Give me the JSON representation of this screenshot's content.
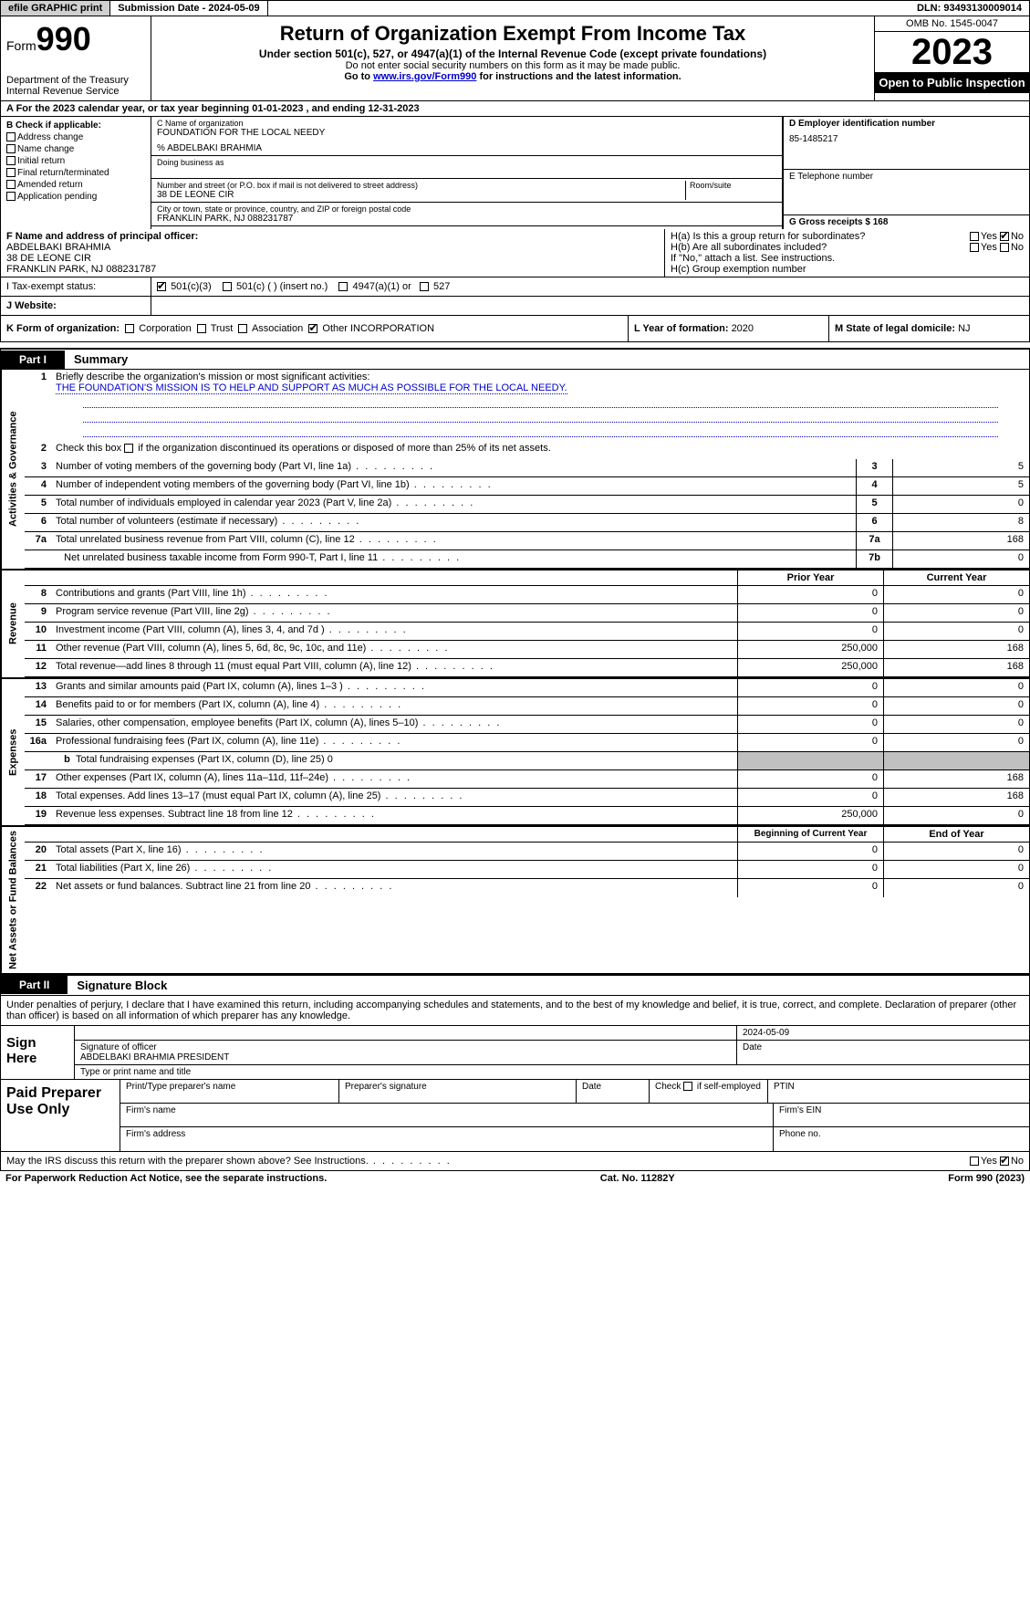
{
  "topbar": {
    "efile": "efile GRAPHIC print",
    "subdate_label": "Submission Date - ",
    "subdate": "2024-05-09",
    "dln_label": "DLN: ",
    "dln": "93493130009014"
  },
  "header": {
    "form_label": "Form",
    "form_num": "990",
    "dept": "Department of the Treasury\nInternal Revenue Service",
    "title": "Return of Organization Exempt From Income Tax",
    "sub1": "Under section 501(c), 527, or 4947(a)(1) of the Internal Revenue Code (except private foundations)",
    "sub2": "Do not enter social security numbers on this form as it may be made public.",
    "sub3_pre": "Go to ",
    "sub3_link": "www.irs.gov/Form990",
    "sub3_post": " for instructions and the latest information.",
    "omb": "OMB No. 1545-0047",
    "year": "2023",
    "open": "Open to Public Inspection"
  },
  "row_a": {
    "pre": "A For the 2023 calendar year, or tax year beginning ",
    "begin": "01-01-2023",
    "mid": "   , and ending ",
    "end": "12-31-2023"
  },
  "b": {
    "hdr": "B Check if applicable:",
    "addr": "Address change",
    "name": "Name change",
    "init": "Initial return",
    "final": "Final return/terminated",
    "amend": "Amended return",
    "app": "Application pending"
  },
  "c": {
    "name_lbl": "C Name of organization",
    "name": "FOUNDATION FOR THE LOCAL NEEDY",
    "co": "% ABDELBAKI BRAHMIA",
    "dba_lbl": "Doing business as",
    "street_lbl": "Number and street (or P.O. box if mail is not delivered to street address)",
    "room_lbl": "Room/suite",
    "street": "38 DE LEONE CIR",
    "city_lbl": "City or town, state or province, country, and ZIP or foreign postal code",
    "city": "FRANKLIN PARK, NJ  088231787"
  },
  "d": {
    "ein_lbl": "D Employer identification number",
    "ein": "85-1485217",
    "tel_lbl": "E Telephone number",
    "gross_lbl": "G Gross receipts $ ",
    "gross": "168"
  },
  "f": {
    "lbl": "F  Name and address of principal officer:",
    "name": "ABDELBAKI BRAHMIA",
    "street": "38 DE LEONE CIR",
    "city": "FRANKLIN PARK, NJ  088231787"
  },
  "h": {
    "a": "H(a)  Is this a group return for subordinates?",
    "b": "H(b)  Are all subordinates included?",
    "note": "If \"No,\" attach a list. See instructions.",
    "c": "H(c)  Group exemption number",
    "yes": "Yes",
    "no": "No"
  },
  "i": {
    "lbl": "I    Tax-exempt status:",
    "c3": "501(c)(3)",
    "c": "501(c) (  ) (insert no.)",
    "a1": "4947(a)(1) or",
    "s527": "527"
  },
  "j": {
    "lbl": "J    Website:"
  },
  "k": {
    "lbl": "K Form of organization:",
    "corp": "Corporation",
    "trust": "Trust",
    "assoc": "Association",
    "other": "Other",
    "other_val": "INCORPORATION"
  },
  "l": {
    "lbl": "L Year of formation: ",
    "val": "2020"
  },
  "m": {
    "lbl": "M State of legal domicile: ",
    "val": "NJ"
  },
  "part1": {
    "tab": "Part I",
    "title": "Summary"
  },
  "s1": {
    "lbl": "Briefly describe the organization's mission or most significant activities:",
    "mission": "THE FOUNDATION'S MISSION IS TO HELP AND SUPPORT AS MUCH AS POSSIBLE FOR THE LOCAL NEEDY."
  },
  "s2": "Check this box      if the organization discontinued its operations or disposed of more than 25% of its net assets.",
  "lines_gov": [
    {
      "n": "3",
      "t": "Number of voting members of the governing body (Part VI, line 1a)",
      "b": "3",
      "v": "5"
    },
    {
      "n": "4",
      "t": "Number of independent voting members of the governing body (Part VI, line 1b)",
      "b": "4",
      "v": "5"
    },
    {
      "n": "5",
      "t": "Total number of individuals employed in calendar year 2023 (Part V, line 2a)",
      "b": "5",
      "v": "0"
    },
    {
      "n": "6",
      "t": "Total number of volunteers (estimate if necessary)",
      "b": "6",
      "v": "8"
    },
    {
      "n": "7a",
      "t": "Total unrelated business revenue from Part VIII, column (C), line 12",
      "b": "7a",
      "v": "168"
    },
    {
      "n": "b",
      "t": "Net unrelated business taxable income from Form 990-T, Part I, line 11",
      "b": "7b",
      "v": "0",
      "indent": true
    }
  ],
  "hdr_py": "Prior Year",
  "hdr_cy": "Current Year",
  "lines_rev": [
    {
      "n": "8",
      "t": "Contributions and grants (Part VIII, line 1h)",
      "py": "0",
      "cy": "0"
    },
    {
      "n": "9",
      "t": "Program service revenue (Part VIII, line 2g)",
      "py": "0",
      "cy": "0"
    },
    {
      "n": "10",
      "t": "Investment income (Part VIII, column (A), lines 3, 4, and 7d )",
      "py": "0",
      "cy": "0"
    },
    {
      "n": "11",
      "t": "Other revenue (Part VIII, column (A), lines 5, 6d, 8c, 9c, 10c, and 11e)",
      "py": "250,000",
      "cy": "168"
    },
    {
      "n": "12",
      "t": "Total revenue—add lines 8 through 11 (must equal Part VIII, column (A), line 12)",
      "py": "250,000",
      "cy": "168"
    }
  ],
  "lines_exp": [
    {
      "n": "13",
      "t": "Grants and similar amounts paid (Part IX, column (A), lines 1–3 )",
      "py": "0",
      "cy": "0"
    },
    {
      "n": "14",
      "t": "Benefits paid to or for members (Part IX, column (A), line 4)",
      "py": "0",
      "cy": "0"
    },
    {
      "n": "15",
      "t": "Salaries, other compensation, employee benefits (Part IX, column (A), lines 5–10)",
      "py": "0",
      "cy": "0"
    },
    {
      "n": "16a",
      "t": "Professional fundraising fees (Part IX, column (A), line 11e)",
      "py": "0",
      "cy": "0"
    },
    {
      "n": "b",
      "t": "Total fundraising expenses (Part IX, column (D), line 25) 0",
      "py": "",
      "cy": "",
      "shade": true,
      "indent": true
    },
    {
      "n": "17",
      "t": "Other expenses (Part IX, column (A), lines 11a–11d, 11f–24e)",
      "py": "0",
      "cy": "168"
    },
    {
      "n": "18",
      "t": "Total expenses. Add lines 13–17 (must equal Part IX, column (A), line 25)",
      "py": "0",
      "cy": "168"
    },
    {
      "n": "19",
      "t": "Revenue less expenses. Subtract line 18 from line 12",
      "py": "250,000",
      "cy": "0"
    }
  ],
  "hdr_bcy": "Beginning of Current Year",
  "hdr_eoy": "End of Year",
  "lines_na": [
    {
      "n": "20",
      "t": "Total assets (Part X, line 16)",
      "py": "0",
      "cy": "0"
    },
    {
      "n": "21",
      "t": "Total liabilities (Part X, line 26)",
      "py": "0",
      "cy": "0"
    },
    {
      "n": "22",
      "t": "Net assets or fund balances. Subtract line 21 from line 20",
      "py": "0",
      "cy": "0"
    }
  ],
  "vlabels": {
    "gov": "Activities & Governance",
    "rev": "Revenue",
    "exp": "Expenses",
    "na": "Net Assets or Fund Balances"
  },
  "part2": {
    "tab": "Part II",
    "title": "Signature Block"
  },
  "sig_text": "Under penalties of perjury, I declare that I have examined this return, including accompanying schedules and statements, and to the best of my knowledge and belief, it is true, correct, and complete. Declaration of preparer (other than officer) is based on all information of which preparer has any knowledge.",
  "sign": {
    "lbl": "Sign Here",
    "date": "2024-05-09",
    "sig_lbl": "Signature of officer",
    "date_lbl": "Date",
    "officer": "ABDELBAKI BRAHMIA  PRESIDENT",
    "type_lbl": "Type or print name and title"
  },
  "paid": {
    "lbl": "Paid Preparer Use Only",
    "c1": "Print/Type preparer's name",
    "c2": "Preparer's signature",
    "c3": "Date",
    "c4_pre": "Check ",
    "c4_post": " if self-employed",
    "c5": "PTIN",
    "firm_name": "Firm's name",
    "firm_ein": "Firm's EIN",
    "firm_addr": "Firm's address",
    "phone": "Phone no."
  },
  "discuss": "May the IRS discuss this return with the preparer shown above? See Instructions.",
  "footer": {
    "left": "For Paperwork Reduction Act Notice, see the separate instructions.",
    "mid": "Cat. No. 11282Y",
    "right": "Form 990 (2023)"
  }
}
